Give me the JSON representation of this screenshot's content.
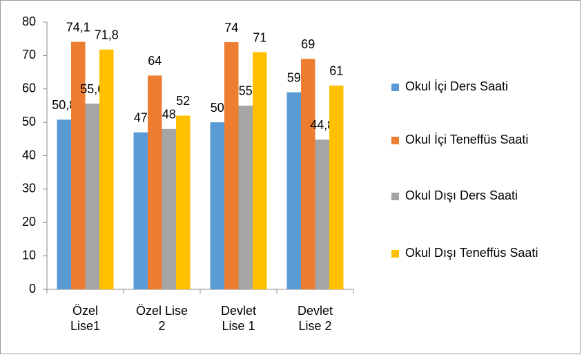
{
  "chart_data": {
    "type": "bar",
    "categories": [
      "Özel Lise1",
      "Özel Lise 2",
      "Devlet Lise 1",
      "Devlet Lise 2"
    ],
    "series": [
      {
        "name": "Okul İçi Ders Saati",
        "color": "#5b9bd5",
        "values": [
          50.8,
          47,
          50,
          59
        ],
        "value_labels": [
          "50,8",
          "47",
          "50",
          "59"
        ]
      },
      {
        "name": "Okul İçi Teneffüs Saati",
        "color": "#ed7d31",
        "values": [
          74.1,
          64,
          74,
          69
        ],
        "value_labels": [
          "74,1",
          "64",
          "74",
          "69"
        ]
      },
      {
        "name": "Okul Dışı Ders Saati",
        "color": "#a5a5a5",
        "values": [
          55.6,
          48,
          55,
          44.8
        ],
        "value_labels": [
          "55,6",
          "48",
          "55",
          "44,8"
        ]
      },
      {
        "name": "Okul Dışı Teneffüs Saati",
        "color": "#ffc000",
        "values": [
          71.8,
          52,
          71,
          61
        ],
        "value_labels": [
          "71,8",
          "52",
          "71",
          "61"
        ]
      }
    ],
    "ylim": [
      0,
      80
    ],
    "yticks": [
      0,
      10,
      20,
      30,
      40,
      50,
      60,
      70,
      80
    ],
    "grid": false,
    "legend": "right"
  }
}
